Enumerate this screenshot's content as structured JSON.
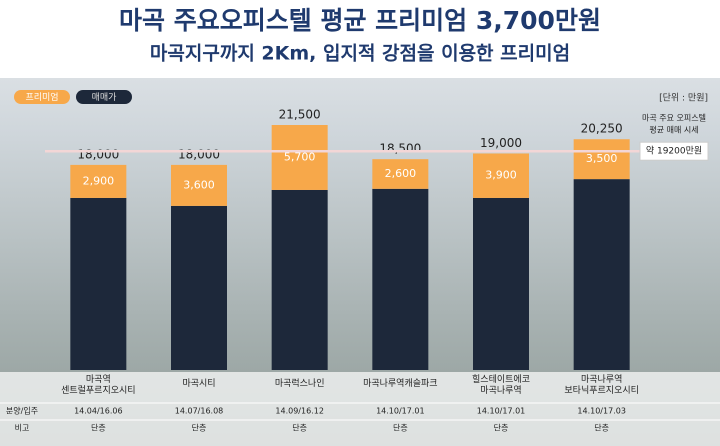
{
  "chart_data": {
    "type": "stacked_bar",
    "title": "마곡 주요오피스텔 평균 프리미엄 3,700만원",
    "subtitle": "마곡지구까지 2Km, 입지적 강점을 이용한 프리미엄",
    "unit_label": "[단위 : 만원]",
    "categories": [
      [
        "마곡역",
        "센트럴푸르지오시티"
      ],
      [
        "마곡시티"
      ],
      [
        "마곡럭스나인"
      ],
      [
        "마곡나루역캐슬파크"
      ],
      [
        "힐스테이트에코",
        "마곡나루역"
      ],
      [
        "마곡나루역",
        "보타닉푸르지오시티"
      ]
    ],
    "series": [
      {
        "name": "매매가",
        "color": "#1d283a",
        "values": [
          15100,
          14400,
          15800,
          15900,
          15100,
          16750
        ]
      },
      {
        "name": "프리미엄",
        "color": "#f7a84a",
        "values": [
          2900,
          3600,
          5700,
          2600,
          3900,
          3500
        ],
        "value_labels": [
          "2,900",
          "3,600",
          "5,700",
          "2,600",
          "3,900",
          "3,500"
        ]
      }
    ],
    "total_labels": [
      "18,000",
      "18,000",
      "21,500",
      "18,500",
      "19,000",
      "20,250"
    ],
    "reference_line": {
      "value": 19200,
      "label": "약 19200만원",
      "note": [
        "마곡 주요 오피스텔",
        "평균 매매 시세"
      ]
    },
    "table": {
      "row_headers": [
        "분양/입주",
        "비고"
      ],
      "rows": [
        [
          "14.04/16.06",
          "14.07/16.08",
          "14.09/16.12",
          "14.10/17.01",
          "14.10/17.01",
          "14.10/17.03"
        ],
        [
          "단층",
          "단층",
          "단층",
          "단층",
          "단층",
          "단층"
        ]
      ]
    }
  }
}
